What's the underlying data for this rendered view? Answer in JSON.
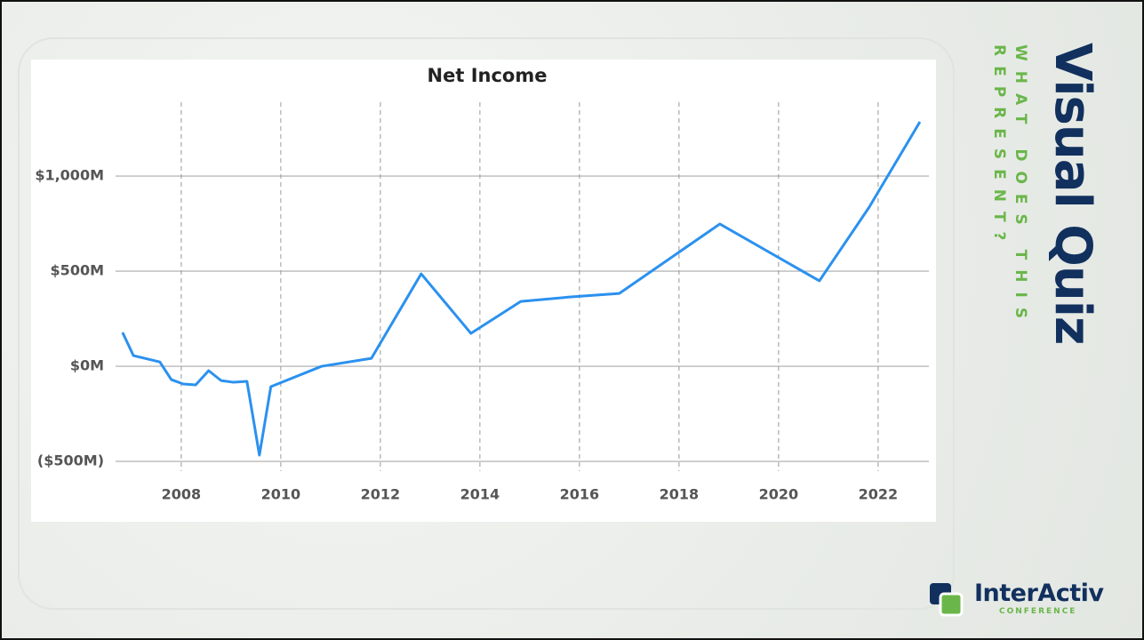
{
  "chart_data": {
    "type": "line",
    "title": "Net Income",
    "x": [
      2006.82,
      2007.04,
      2007.57,
      2007.8,
      2008.04,
      2008.29,
      2008.55,
      2008.8,
      2009.05,
      2009.32,
      2009.57,
      2009.8,
      2010.82,
      2011.82,
      2012.82,
      2013.82,
      2014.82,
      2015.8,
      2016.8,
      2018.82,
      2020.82,
      2021.82,
      2022.84
    ],
    "series": [
      {
        "name": "Net Income",
        "color": "#2b91ef",
        "values": [
          178,
          56,
          23,
          -70,
          -93,
          -98,
          -23,
          -75,
          -84,
          -79,
          -467,
          -107,
          0,
          42,
          486,
          173,
          341,
          364,
          383,
          748,
          449,
          836,
          1285
        ]
      }
    ],
    "xlim": [
      2006.68,
      2023.02
    ],
    "xticks": [
      2008,
      2010,
      2012,
      2014,
      2016,
      2018,
      2020,
      2022
    ],
    "ylim": [
      -551,
      1388
    ],
    "yticks": [
      {
        "value": -500,
        "label": "($500M)"
      },
      {
        "value": 0,
        "label": "$0M"
      },
      {
        "value": 500,
        "label": "$500M"
      },
      {
        "value": 1000,
        "label": "$1,000M"
      }
    ],
    "grid": true
  },
  "side_title": "Visual Quiz",
  "side_subtitle": "WHAT DOES THIS REPRESENT?",
  "logo": {
    "name": "InterActiv",
    "sub": "CONFERENCE"
  }
}
